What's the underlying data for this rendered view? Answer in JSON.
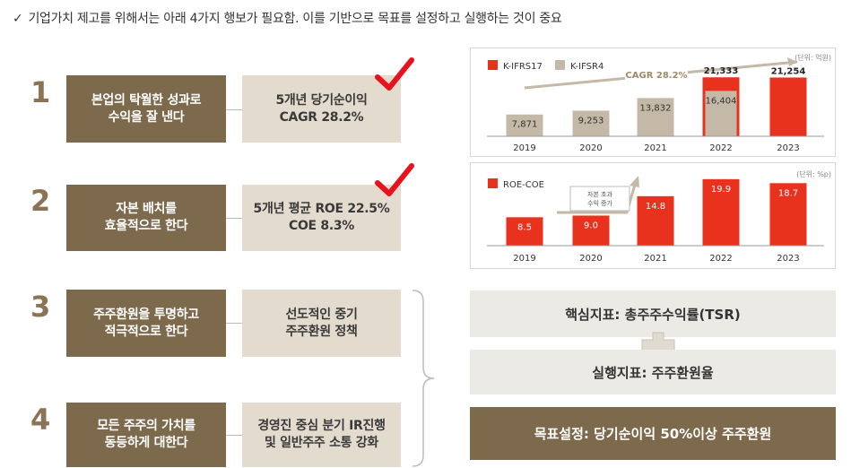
{
  "header": {
    "check": "✓",
    "text": "기업가치 제고를 위해서는 아래 4가지 행보가 필요함. 이를 기반으로 목표를 설정하고 실행하는 것이 중요"
  },
  "items": [
    {
      "num": "1",
      "label": "본업의 탁월한 성과로\n수익을 잘 낸다",
      "detail": "5개년 당기순이익\nCAGR 28.2%",
      "checked": true
    },
    {
      "num": "2",
      "label": "자본 배치를\n효율적으로 한다",
      "detail": "5개년 평균 ROE 22.5%\nCOE 8.3%",
      "checked": true
    },
    {
      "num": "3",
      "label": "주주환원을 투명하고\n적극적으로 한다",
      "detail": "선도적인 중기\n주주환원 정책",
      "checked": false
    },
    {
      "num": "4",
      "label": "모든 주주의 가치를\n동등하게 대한다",
      "detail": "경영진 중심 분기 IR진행\n및 일반주주 소통 강화",
      "checked": false
    }
  ],
  "colors": {
    "brown": "#7d6a4d",
    "beige": "#e3dbce",
    "red": "#e8321e",
    "tan": "#c4b8a6",
    "check": "#e8121e"
  },
  "chart_data": [
    {
      "type": "bar",
      "unit": "(단위: 억원)",
      "categories": [
        "2019",
        "2020",
        "2021",
        "2022",
        "2023"
      ],
      "series": [
        {
          "name": "K-IFRS17",
          "values": [
            null,
            null,
            null,
            21333,
            21254
          ]
        },
        {
          "name": "K-IFSR4",
          "values": [
            7871,
            9253,
            13832,
            16404,
            null
          ]
        }
      ],
      "labels": {
        "K-IFRS17": [
          "",
          "",
          "",
          "21,333",
          "21,254"
        ],
        "K-IFSR4": [
          "7,871",
          "9,253",
          "13,832",
          "16,404",
          ""
        ]
      },
      "annotation": "CAGR 28.2%",
      "ylim": [
        0,
        24000
      ]
    },
    {
      "type": "bar",
      "unit": "(단위: %p)",
      "categories": [
        "2019",
        "2020",
        "2021",
        "2022",
        "2023"
      ],
      "series": [
        {
          "name": "ROE-COE",
          "values": [
            8.5,
            9.0,
            14.8,
            19.9,
            18.7
          ]
        }
      ],
      "labels": {
        "ROE-COE": [
          "8.5",
          "9.0",
          "14.8",
          "19.9",
          "18.7"
        ]
      },
      "annotation": "자본 초과\n수익 증가",
      "ylim": [
        0,
        22
      ]
    }
  ],
  "kpi": {
    "core": "핵심지표: 총주주수익률(TSR)",
    "exec": "실행지표: 주주환원율",
    "goal": "목표설정: 당기순이익 50%이상 주주환원"
  }
}
